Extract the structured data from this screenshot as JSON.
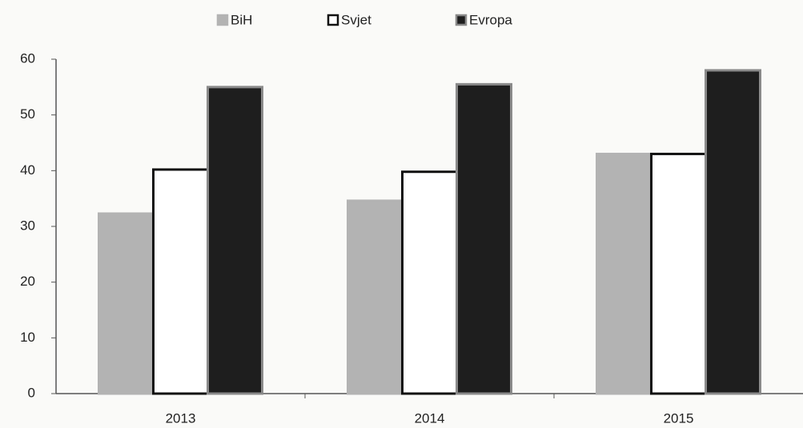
{
  "chart_data": {
    "type": "bar",
    "categories": [
      "2013",
      "2014",
      "2015"
    ],
    "series": [
      {
        "name": "BiH",
        "color": "#b3b3b3",
        "values": [
          32.3,
          34.6,
          43
        ]
      },
      {
        "name": "Svjet",
        "color": "#ffffff",
        "values": [
          40.2,
          39.8,
          43
        ]
      },
      {
        "name": "Evropa",
        "color": "#1e1e1e",
        "values": [
          55,
          55.5,
          58
        ]
      }
    ],
    "ylim": [
      0,
      60
    ],
    "yticks": [
      0,
      10,
      20,
      30,
      40,
      50,
      60
    ],
    "grid": false,
    "legend": "top"
  }
}
